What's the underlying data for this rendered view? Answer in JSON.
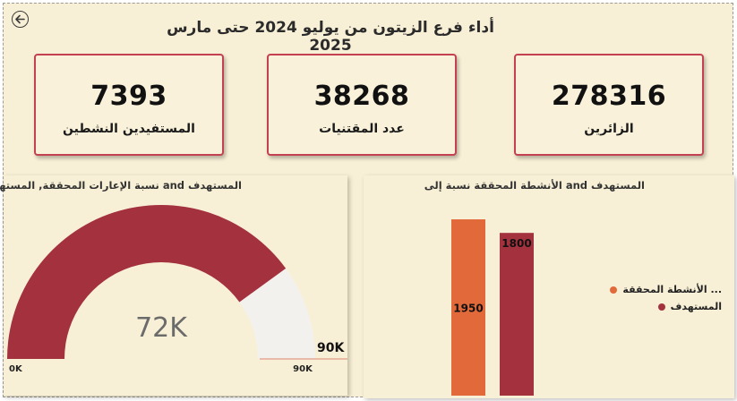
{
  "header": {
    "title": "أداء فرع الزيتون من يوليو 2024 حتى مارس 2025"
  },
  "kpis": [
    {
      "value": "278316",
      "label": "الزائرين"
    },
    {
      "value": "38268",
      "label": "عدد المقتنيات"
    },
    {
      "value": "7393",
      "label": "المستفيدين النشطين"
    }
  ],
  "gauge_panel": {
    "title": "المستهدف and نسبة الإعارات المحققة, المستهدف",
    "center_label": "72K",
    "min_label": "0K",
    "max_label": "90K",
    "target_label": "90K"
  },
  "bar_panel": {
    "title": "المستهدف and الأنشطة المحققة نسبة إلى"
  },
  "colors": {
    "accent_red": "#a4313e",
    "accent_orange": "#e2693a",
    "card_border": "#c44152",
    "background": "#f8f0d6"
  },
  "chart_data": [
    {
      "type": "gauge",
      "title": "المستهدف and نسبة الإعارات المحققة, المستهدف",
      "value": 72000,
      "value_label": "72K",
      "min": 0,
      "max": 90000,
      "target": 90000,
      "target_label": "90K",
      "min_label": "0K",
      "max_label": "90K",
      "fill_color": "#a4313e",
      "track_color": "#f3f1ee"
    },
    {
      "type": "bar",
      "title": "المستهدف and الأنشطة المحققة نسبة إلى",
      "categories": [
        ""
      ],
      "series": [
        {
          "name": "... الأنشطة المحققة",
          "values": [
            1950
          ],
          "color": "#e2693a"
        },
        {
          "name": "المستهدف",
          "values": [
            1800
          ],
          "color": "#a4313e"
        }
      ],
      "ylim": [
        0,
        2000
      ],
      "legend": "right"
    }
  ]
}
